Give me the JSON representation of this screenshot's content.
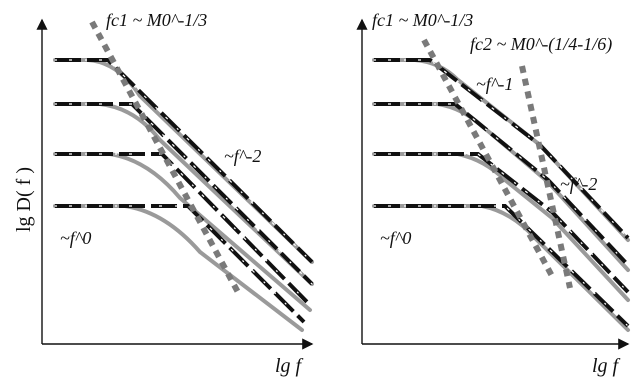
{
  "figure": {
    "panels": [
      {
        "id": "left",
        "ylabel": "lg D( f )",
        "xlabel": "lg f",
        "corner_label": "fc1 ~ M0^-1/3",
        "slope_high_label": "~f^-2",
        "slope_low_label": "~f^0"
      },
      {
        "id": "right",
        "xlabel": "lg f",
        "corner1_label": "fc1 ~ M0^-1/3",
        "corner2_label": "fc2 ~ M0^-(1/4-1/6)",
        "slope_mid_label": "~f^-1",
        "slope_high_label": "~f^-2",
        "slope_low_label": "~f^0"
      }
    ],
    "colors": {
      "curve": "#111111",
      "gray_curve": "#9a9a9a",
      "trend_line": "#7a7a7a",
      "axis": "#111111"
    }
  }
}
